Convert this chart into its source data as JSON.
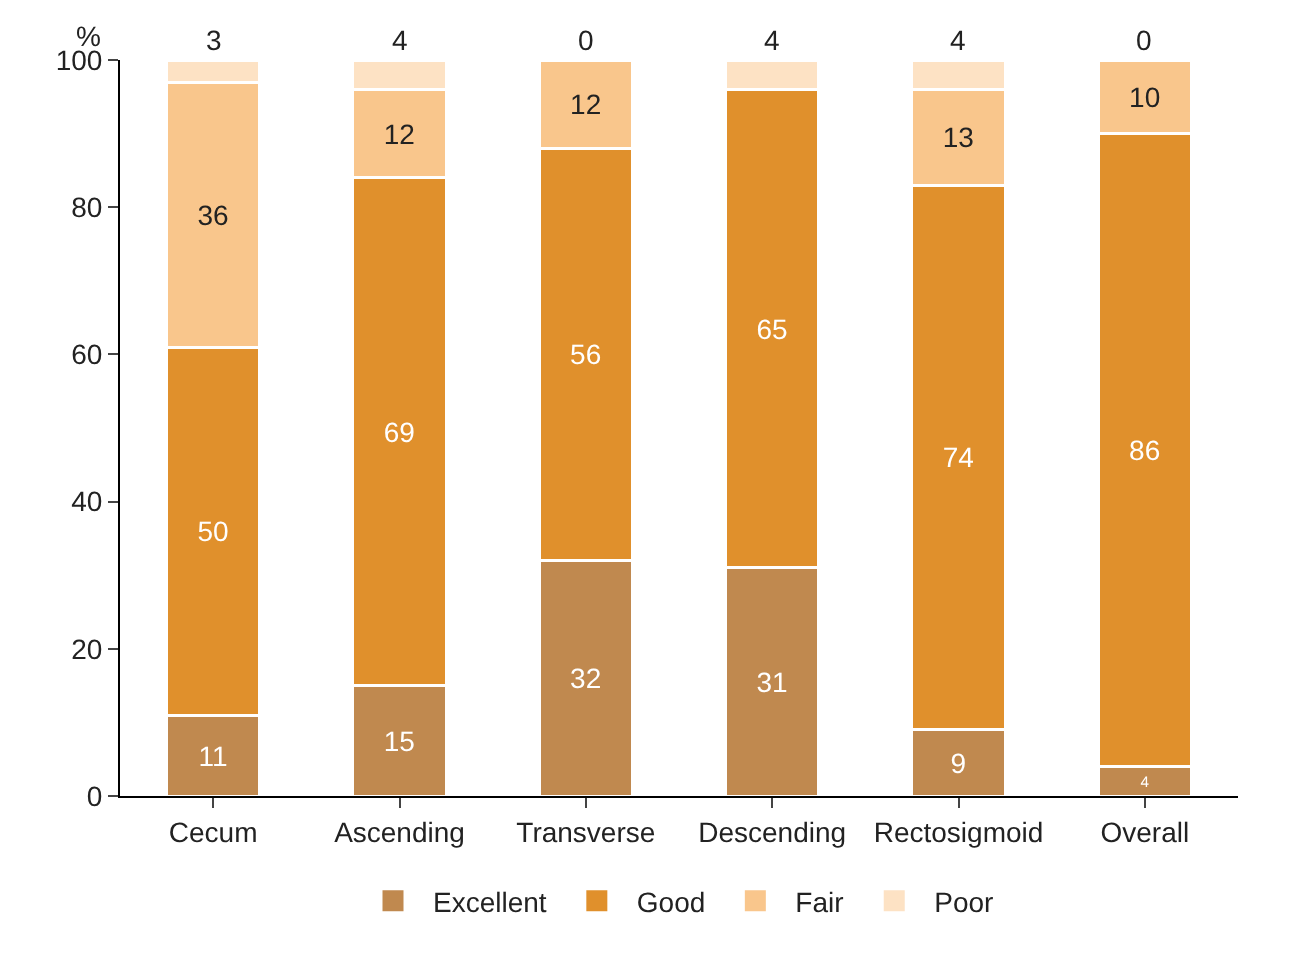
{
  "chart_data": {
    "type": "bar",
    "stacked": true,
    "ylabel": "%",
    "categories": [
      "Cecum",
      "Ascending",
      "Transverse",
      "Descending",
      "Rectosigmoid",
      "Overall"
    ],
    "ylim": [
      0,
      100
    ],
    "yticks": [
      0,
      20,
      40,
      60,
      80,
      100
    ],
    "legend": "bottom",
    "series": [
      {
        "name": "Excellent",
        "color": "#c0894f",
        "values": [
          11,
          15,
          32,
          31,
          9,
          4
        ],
        "value_labels": [
          "11",
          "15",
          "32",
          "31",
          "9",
          "4"
        ]
      },
      {
        "name": "Good",
        "color": "#e0902c",
        "values": [
          50,
          69,
          56,
          65,
          74,
          86
        ],
        "value_labels": [
          "50",
          "69",
          "56",
          "65",
          "74",
          "86"
        ]
      },
      {
        "name": "Fair",
        "color": "#f9c68c",
        "values": [
          36,
          12,
          12,
          0,
          13,
          10
        ],
        "value_labels": [
          "36",
          "12",
          "12",
          null,
          "13",
          "10"
        ]
      },
      {
        "name": "Poor",
        "color": "#fde2c4",
        "values": [
          3,
          4,
          0,
          4,
          4,
          0
        ],
        "value_labels": [
          "3",
          "4",
          "0",
          "4",
          "4",
          "0"
        ]
      }
    ]
  }
}
